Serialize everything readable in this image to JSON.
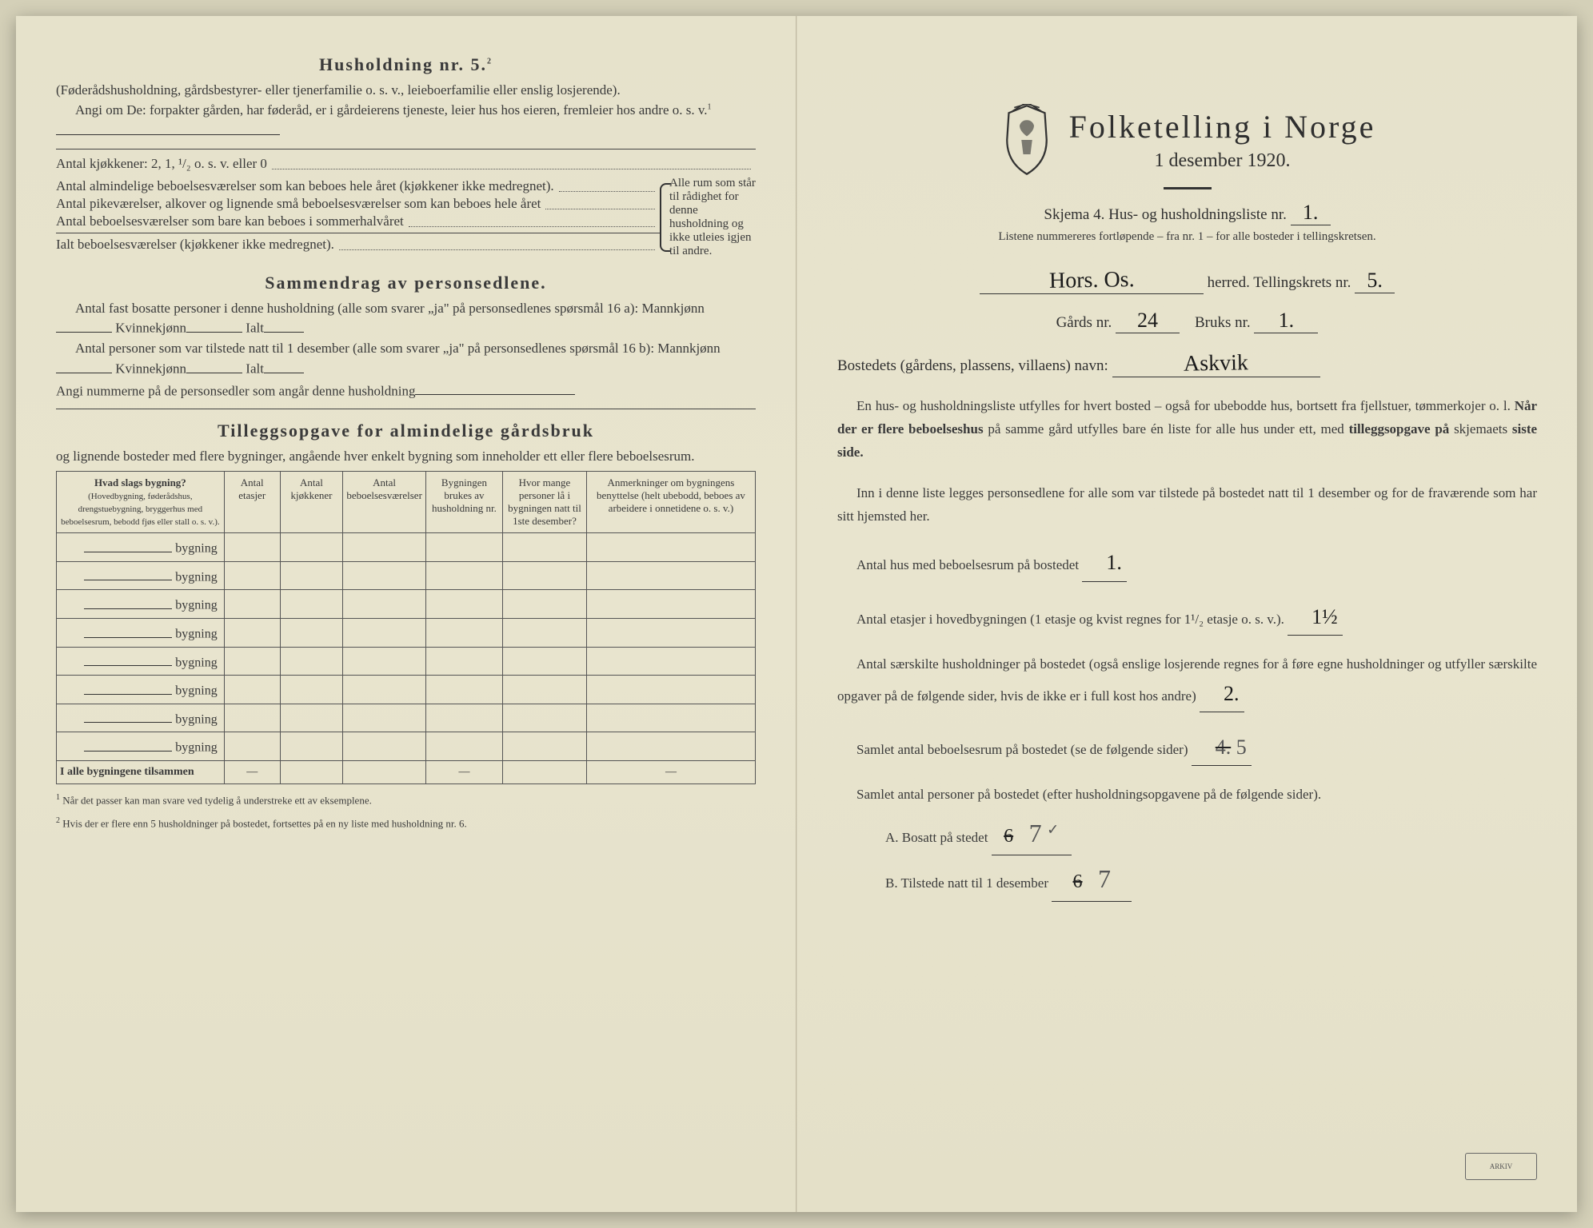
{
  "left": {
    "household_title": "Husholdning nr. 5.",
    "household_sup": "2",
    "intro1": "(Føderådshusholdning, gårdsbestyrer- eller tjenerfamilie o. s. v., leieboerfamilie eller enslig losjerende).",
    "intro2": "Angi om De: forpakter gården, har føderåd, er i gårdeierens tjeneste, leier hus hos eieren, fremleier hos andre o. s. v.",
    "kitchens_label": "Antal kjøkkener: 2, 1, ¹/₂ o. s. v. eller 0",
    "rooms": {
      "r1": "Antal almindelige beboelsesværelser som kan beboes hele året (kjøkkener ikke medregnet).",
      "r2": "Antal pikeværelser, alkover og lignende små beboelsesværelser som kan beboes hele året",
      "r3": "Antal beboelsesværelser som bare kan beboes i sommerhalvåret",
      "total": "Ialt beboelsesværelser (kjøkkener ikke medregnet)."
    },
    "bracket_text": "Alle rum som står til rådighet for denne husholdning og ikke utleies igjen til andre.",
    "summary_title": "Sammendrag av personsedlene.",
    "s1a": "Antal fast bosatte personer i denne husholdning (alle som svarer „ja\" på personsedlenes spørsmål 16 a): Mannkjønn",
    "s1b": "Kvinnekjønn",
    "s1c": "Ialt",
    "s2a": "Antal personer som var tilstede natt til 1 desember (alle som svarer „ja\" på personsedlenes spørsmål 16 b): Mannkjønn",
    "s3": "Angi nummerne på de personsedler som angår denne husholdning",
    "tillegg_title": "Tilleggsopgave for almindelige gårdsbruk",
    "tillegg_sub": "og lignende bosteder med flere bygninger, angående hver enkelt bygning som inneholder ett eller flere beboelsesrum.",
    "table": {
      "h1": "Hvad slags bygning?",
      "h1_sub": "(Hovedbygning, føderådshus, drengstuebygning, bryggerhus med beboelsesrum, bebodd fjøs eller stall o. s. v.).",
      "h2": "Antal etasjer",
      "h3": "Antal kjøkkener",
      "h4": "Antal beboelsesværelser",
      "h5": "Bygningen brukes av husholdning nr.",
      "h6": "Hvor mange personer lå i bygningen natt til 1ste desember?",
      "h7": "Anmerkninger om bygningens benyttelse (helt ubebodd, beboes av arbeidere i onnetidene o. s. v.)",
      "row_label": "bygning",
      "rows": 8,
      "total_label": "I alle bygningene tilsammen"
    },
    "fn1": "Når det passer kan man svare ved tydelig å understreke ett av eksemplene.",
    "fn2": "Hvis der er flere enn 5 husholdninger på bostedet, fortsettes på en ny liste med husholdning nr. 6."
  },
  "right": {
    "title": "Folketelling i Norge",
    "date": "1 desember 1920.",
    "form_label": "Skjema 4.  Hus- og husholdningsliste nr.",
    "form_nr": "1.",
    "list_note": "Listene nummereres fortløpende – fra nr. 1 – for alle bosteder i tellingskretsen.",
    "herred_hand": "Hors.    Os.",
    "herred_label": "herred.  Tellingskrets nr.",
    "krets_nr": "5.",
    "gard_label": "Gårds nr.",
    "gard_nr": "24",
    "bruk_label": "Bruks nr.",
    "bruk_nr": "1.",
    "bosted_label": "Bostedets (gårdens, plassens, villaens) navn:",
    "bosted_name": "Askvik",
    "p1": "En hus- og husholdningsliste utfylles for hvert bosted – også for ubebodde hus, bortsett fra fjellstuer, tømmerkojer o. l.",
    "p1b": "Når der er flere beboelseshus",
    "p1c": "på samme gård utfylles bare én liste for alle hus under ett, med",
    "p1d": "tilleggsopgave på",
    "p1e": "skjemaets",
    "p1f": "siste side.",
    "p2": "Inn i denne liste legges personsedlene for alle som var tilstede på bostedet natt til 1 desember og for de fraværende som har sitt hjemsted her.",
    "q_hus": "Antal hus med beboelsesrum på bostedet",
    "q_hus_v": "1.",
    "q_etasjer_a": "Antal etasjer i hovedbygningen (1 etasje og kvist regnes for 1¹/₂ etasje o. s. v.).",
    "q_etasjer_v": "1½",
    "q_hush": "Antal særskilte husholdninger på bostedet (også enslige losjerende regnes for å føre egne husholdninger og utfyller særskilte opgaver på de følgende sider, hvis de ikke er i full kost hos andre)",
    "q_hush_v": "2.",
    "q_rooms": "Samlet antal beboelsesrum på bostedet (se de følgende sider)",
    "q_rooms_strike": "4.",
    "q_rooms_v": "5",
    "q_persons": "Samlet antal personer på bostedet (efter husholdningsopgavene på de følgende sider).",
    "qa_label": "A.  Bosatt på stedet",
    "qa_strike": "6",
    "qa_v": "7",
    "qa_check": "✓",
    "qb_label": "B.  Tilstede natt til 1 desember",
    "qb_strike": "6",
    "qb_v": "7"
  },
  "colors": {
    "paper": "#e8e4ce",
    "ink": "#2f2f2f",
    "hand": "#1a1a1a",
    "pencil": "#555555"
  }
}
